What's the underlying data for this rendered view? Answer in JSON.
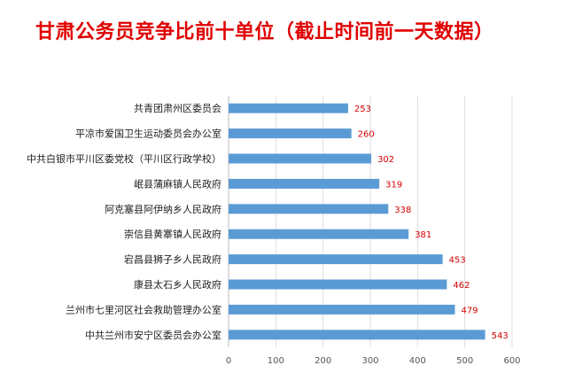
{
  "title": "甘肃公务员竞争比前十单位（截止时间前一天数据）",
  "chart_data": {
    "type": "bar",
    "orientation": "horizontal",
    "title": "甘肃公务员竞争比前十单位（截止时间前一天数据）",
    "xlabel": "",
    "ylabel": "",
    "xlim": [
      0,
      600
    ],
    "xticks": [
      0,
      100,
      200,
      300,
      400,
      500,
      600
    ],
    "grid": true,
    "bar_color": "#5b9bd5",
    "label_color": "#d40000",
    "categories": [
      "共青团肃州区委员会",
      "平凉市爱国卫生运动委员会办公室",
      "中共白银市平川区委党校（平川区行政学校）",
      "岷县蒲麻镇人民政府",
      "阿克塞县阿伊纳乡人民政府",
      "崇信县黄寨镇人民政府",
      "宕昌县狮子乡人民政府",
      "康县太石乡人民政府",
      "兰州市七里河区社会救助管理办公室",
      "中共兰州市安宁区委员会办公室"
    ],
    "values": [
      253,
      260,
      302,
      319,
      338,
      381,
      453,
      462,
      479,
      543
    ]
  }
}
